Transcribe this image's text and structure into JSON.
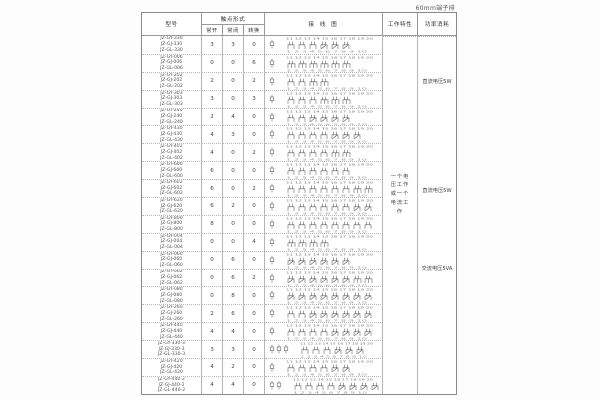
{
  "caption": "60mm端子排",
  "header": {
    "model": "型号",
    "contact_form": "触点形式",
    "normally_open": "常开",
    "normally_closed": "常闭",
    "changeover": "转换",
    "wiring_diagram": "接 线 图",
    "working_characteristic": "工作特性",
    "power_consumption": "功率消耗"
  },
  "working_characteristic_note": {
    "full_text": "一个电压工作或一个电流工作",
    "lines": [
      "一个电",
      "压工作",
      "或一个",
      "电流工",
      "作"
    ]
  },
  "power_notes": [
    {
      "label": "直流电压5W",
      "top_pct": 11.5
    },
    {
      "label": "直流电压5W",
      "top_pct": 42
    },
    {
      "label": "交流电压5VA",
      "top_pct": 64
    }
  ],
  "diagram": {
    "top_terminals": "11 12 13 14 15 16 17 18 19 20",
    "bottom_terminals": "1 2 3 4 5 6 7 8 9 10"
  },
  "rows": [
    {
      "models": [
        "JZ-GY-330",
        "JZ-GJ-330",
        "JZ-GL-330"
      ],
      "no": 3,
      "nc": 3,
      "co": 0,
      "coils": 1
    },
    {
      "models": [
        "JZ-GY-006",
        "JZ-GJ-006",
        "JZ-GL-006"
      ],
      "no": 0,
      "nc": 0,
      "co": 6,
      "coils": 1
    },
    {
      "models": [
        "JZ-GY-202",
        "JZ-GJ-202",
        "JZ-GL-202"
      ],
      "no": 2,
      "nc": 0,
      "co": 2,
      "coils": 1
    },
    {
      "models": [
        "JZ-GY-303",
        "JZ-GJ-303",
        "JZ-GL-303"
      ],
      "no": 3,
      "nc": 0,
      "co": 3,
      "coils": 1
    },
    {
      "models": [
        "JZ-GY-240",
        "JZ-GJ-240",
        "JZ-GL-240"
      ],
      "no": 2,
      "nc": 4,
      "co": 0,
      "coils": 1
    },
    {
      "models": [
        "JZ-GY-430",
        "JZ-GJ-430",
        "JZ-GL-430"
      ],
      "no": 4,
      "nc": 3,
      "co": 0,
      "coils": 1
    },
    {
      "models": [
        "JZ-GY-402",
        "JZ-GJ-402",
        "JZ-GL-402"
      ],
      "no": 4,
      "nc": 0,
      "co": 2,
      "coils": 1
    },
    {
      "models": [
        "JZ-GY-600",
        "JZ-GJ-600",
        "JZ-GL-600"
      ],
      "no": 6,
      "nc": 0,
      "co": 0,
      "coils": 1
    },
    {
      "models": [
        "JZ-GY-602",
        "JZ-GJ-602",
        "JZ-GL-602"
      ],
      "no": 6,
      "nc": 0,
      "co": 2,
      "coils": 1
    },
    {
      "models": [
        "JZ-GY-620",
        "JZ-GJ-620",
        "JZ-GL-620"
      ],
      "no": 6,
      "nc": 2,
      "co": 0,
      "coils": 1
    },
    {
      "models": [
        "JZ-GY-800",
        "JZ-GJ-800",
        "JZ-GL-800"
      ],
      "no": 8,
      "nc": 0,
      "co": 0,
      "coils": 1
    },
    {
      "models": [
        "JZ-GY-004",
        "JZ-GJ-004",
        "JZ-GL-004"
      ],
      "no": 0,
      "nc": 0,
      "co": 4,
      "coils": 1
    },
    {
      "models": [
        "JZ-GY-060",
        "JZ-GJ-060",
        "JZ-GL-060"
      ],
      "no": 0,
      "nc": 6,
      "co": 0,
      "coils": 1
    },
    {
      "models": [
        "JZ-GY-062",
        "JZ-GJ-062",
        "JZ-GL-062"
      ],
      "no": 0,
      "nc": 6,
      "co": 2,
      "coils": 1
    },
    {
      "models": [
        "JZ-GY-080",
        "JZ-GJ-080",
        "JZ-GL-080"
      ],
      "no": 0,
      "nc": 8,
      "co": 0,
      "coils": 1
    },
    {
      "models": [
        "JZ-GY-260",
        "JZ-GJ-260",
        "JZ-GL-260"
      ],
      "no": 2,
      "nc": 6,
      "co": 0,
      "coils": 1
    },
    {
      "models": [
        "JZ-GY-440",
        "JZ-GJ-440",
        "JZ-GL-440"
      ],
      "no": 4,
      "nc": 4,
      "co": 0,
      "coils": 1
    },
    {
      "models": [
        "JZ-GY-330-3",
        "JZ-GJ-330-3",
        "JZ-GL-330-3"
      ],
      "no": 3,
      "nc": 3,
      "co": 0,
      "coils": 3
    },
    {
      "models": [
        "JZ-GY-420",
        "JZ-GJ-420",
        "JZ-GL-420"
      ],
      "no": 4,
      "nc": 2,
      "co": 0,
      "coils": 1
    },
    {
      "models": [
        "JZ-GY-440-2",
        "JZ-GJ-440-2",
        "JZ-GL-440-2"
      ],
      "no": 4,
      "nc": 4,
      "co": 0,
      "coils": 2
    }
  ]
}
